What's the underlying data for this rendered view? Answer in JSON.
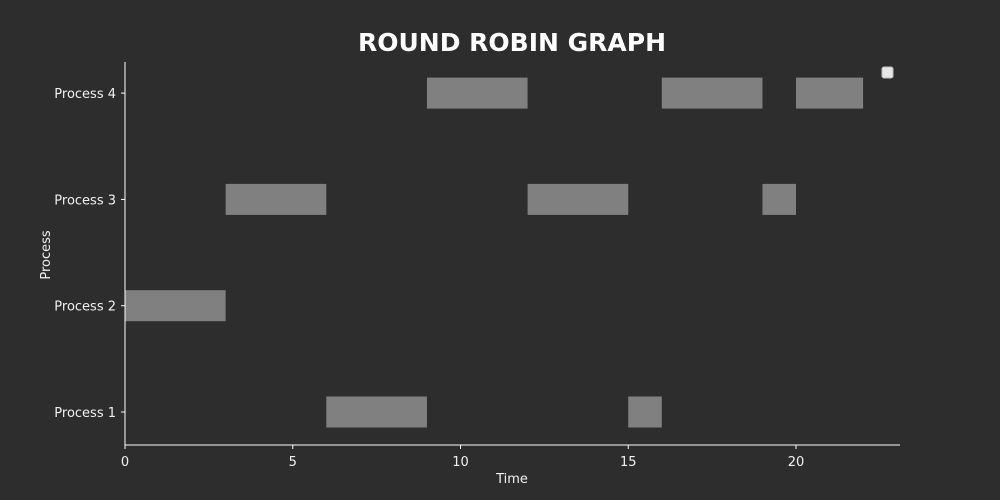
{
  "chart_data": {
    "type": "bar",
    "orientation": "horizontal",
    "subtype": "gantt",
    "title": "ROUND ROBIN GRAPH",
    "xlabel": "Time",
    "ylabel": "Process",
    "xlim": [
      0,
      23.1
    ],
    "x_ticks": [
      0,
      5,
      10,
      15,
      20
    ],
    "categories": [
      "Process 1",
      "Process 2",
      "Process 3",
      "Process 4"
    ],
    "grid": false,
    "legend_position": "top-right",
    "bar_color": "#808080",
    "background_color": "#2d2d2d",
    "tasks": [
      {
        "process": "Process 2",
        "start": 0,
        "end": 3
      },
      {
        "process": "Process 3",
        "start": 3,
        "end": 6
      },
      {
        "process": "Process 1",
        "start": 6,
        "end": 9
      },
      {
        "process": "Process 4",
        "start": 9,
        "end": 12
      },
      {
        "process": "Process 3",
        "start": 12,
        "end": 15
      },
      {
        "process": "Process 1",
        "start": 15,
        "end": 16
      },
      {
        "process": "Process 4",
        "start": 16,
        "end": 19
      },
      {
        "process": "Process 3",
        "start": 19,
        "end": 20
      },
      {
        "process": "Process 4",
        "start": 20,
        "end": 22
      }
    ]
  }
}
